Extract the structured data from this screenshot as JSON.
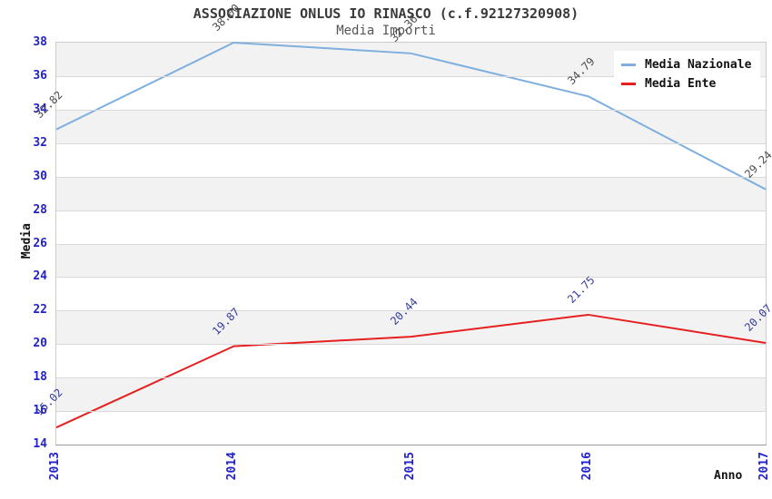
{
  "colors": {
    "tick_label": "#2222cc",
    "band": "#f2f2f2",
    "grid": "#d9d9d9",
    "plot_border": "#cccccc",
    "axis_line": "#999999",
    "title": "#3a3a3a",
    "subtitle": "#555555"
  },
  "chart_data": {
    "type": "line",
    "title": "ASSOCIAZIONE ONLUS IO RINASCO (c.f.92127320908)",
    "subtitle": "Media Importi",
    "xlabel": "Anno",
    "ylabel": "Media",
    "x": [
      "2013",
      "2014",
      "2015",
      "2016",
      "2017"
    ],
    "series": [
      {
        "name": "Media Nazionale",
        "color": "#7fafdf",
        "label_color": "#4d4d4d",
        "values": [
          32.82,
          38.0,
          37.36,
          34.79,
          29.24
        ]
      },
      {
        "name": "Media Ente",
        "color": "#e62020",
        "label_color": "#363d99",
        "values": [
          15.02,
          19.87,
          20.44,
          21.75,
          20.07
        ]
      }
    ],
    "ylim": [
      14,
      38
    ],
    "ytick_step": 2,
    "grid": true,
    "band_fill": "alternating",
    "legend_position": "top-right",
    "value_labels": "shown, rotated 45deg, 2 decimals"
  }
}
